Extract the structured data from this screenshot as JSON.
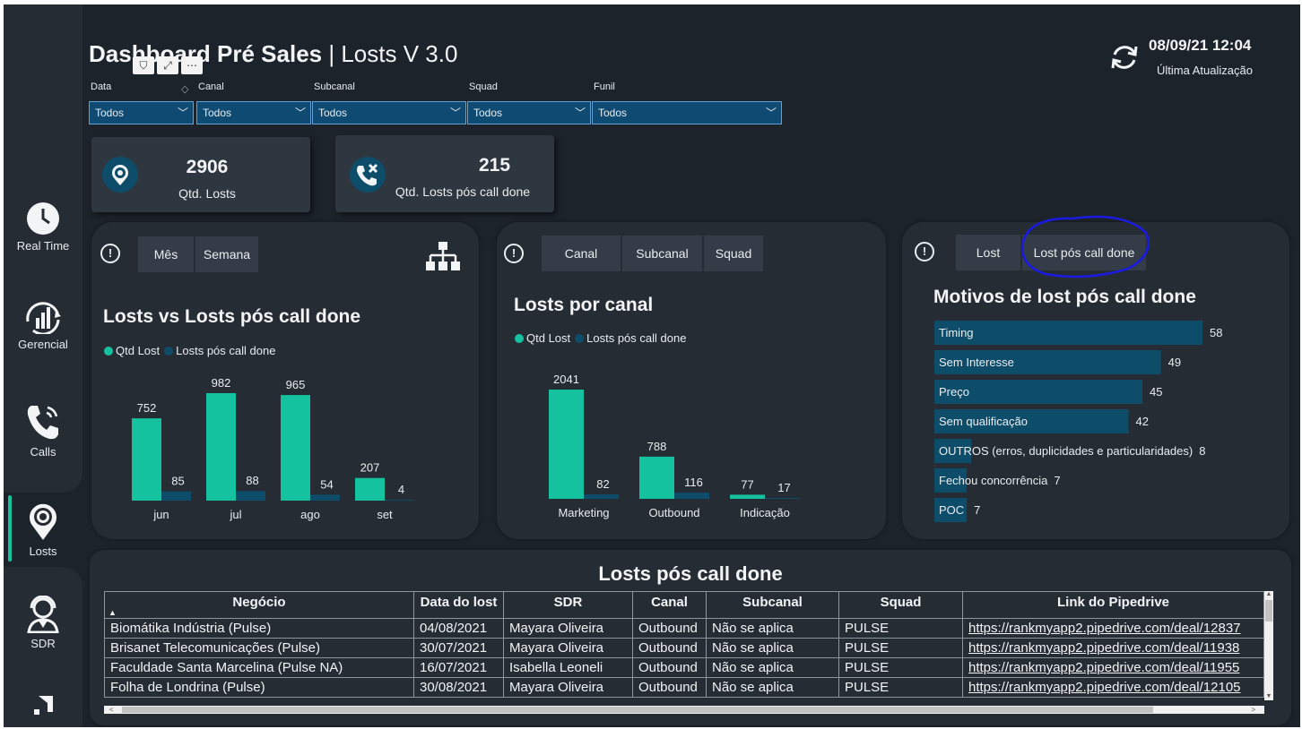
{
  "header": {
    "title_bold": "Dashboard Pré Sales",
    "title_rest": "| Losts V 3.0",
    "datetime": "08/09/21 12:04",
    "last_update_label": "Última Atualização"
  },
  "sidebar": {
    "items": [
      {
        "label": "Real Time",
        "icon": "clock-icon"
      },
      {
        "label": "Gerencial",
        "icon": "chart-gauge-icon"
      },
      {
        "label": "Calls",
        "icon": "phone-icon"
      },
      {
        "label": "Losts",
        "icon": "target-pin-icon",
        "selected": true
      },
      {
        "label": "SDR",
        "icon": "person-headset-icon"
      }
    ]
  },
  "filters": [
    {
      "label": "Data",
      "value": "Todos"
    },
    {
      "label": "Canal",
      "value": "Todos"
    },
    {
      "label": "Subcanal",
      "value": "Todos"
    },
    {
      "label": "Squad",
      "value": "Todos"
    },
    {
      "label": "Funil",
      "value": "Todos"
    }
  ],
  "kpis": [
    {
      "value": "2906",
      "caption": "Qtd. Losts"
    },
    {
      "value": "215",
      "caption": "Qtd. Losts pós call done"
    }
  ],
  "colors": {
    "qtd_lost": "#14c2a0",
    "lost_pos_call": "#0e4d6a",
    "bar_blue": "#0e4d6a",
    "accent": "#14c2a0",
    "annotation": "#1a1ae0"
  },
  "panel1": {
    "toggles": [
      "Mês",
      "Semana"
    ],
    "title": "Losts vs Losts pós call done",
    "legend": [
      "Qtd Lost",
      "Losts pós call done"
    ]
  },
  "panel2": {
    "toggles": [
      "Canal",
      "Subcanal",
      "Squad"
    ],
    "title": "Losts por canal",
    "legend": [
      "Qtd Lost",
      "Losts pós call done"
    ]
  },
  "panel3": {
    "toggles": [
      "Lost",
      "Lost pós call done"
    ],
    "title": "Motivos de lost pós call done"
  },
  "chart_data": [
    {
      "type": "bar",
      "title": "Losts vs Losts pós call done",
      "categories": [
        "jun",
        "jul",
        "ago",
        "set"
      ],
      "series": [
        {
          "name": "Qtd Lost",
          "values": [
            752,
            982,
            965,
            207
          ]
        },
        {
          "name": "Losts pós call done",
          "values": [
            85,
            88,
            54,
            4
          ]
        }
      ]
    },
    {
      "type": "bar",
      "title": "Losts por canal",
      "categories": [
        "Marketing",
        "Outbound",
        "Indicação"
      ],
      "series": [
        {
          "name": "Qtd Lost",
          "values": [
            2041,
            788,
            77
          ]
        },
        {
          "name": "Losts pós call done",
          "values": [
            82,
            116,
            17
          ]
        }
      ]
    },
    {
      "type": "bar",
      "orientation": "horizontal",
      "title": "Motivos de lost pós call done",
      "categories": [
        "Timing",
        "Sem Interesse",
        "Preço",
        "Sem qualificação",
        "OUTROS (erros, duplicidades e particularidades)",
        "Fechou concorrência",
        "POC"
      ],
      "values": [
        58,
        49,
        45,
        42,
        8,
        7,
        7
      ]
    }
  ],
  "table": {
    "title": "Losts pós call done",
    "columns": [
      "Negócio",
      "Data do lost",
      "SDR",
      "Canal",
      "Subcanal",
      "Squad",
      "Link do Pipedrive"
    ],
    "rows": [
      [
        "Biomátika Indústria (Pulse)",
        "04/08/2021",
        "Mayara Oliveira",
        "Outbound",
        "Não se aplica",
        "PULSE",
        "https://rankmyapp2.pipedrive.com/deal/12837"
      ],
      [
        "Brisanet Telecomunicações (Pulse)",
        "30/07/2021",
        "Mayara Oliveira",
        "Outbound",
        "Não se aplica",
        "PULSE",
        "https://rankmyapp2.pipedrive.com/deal/11938"
      ],
      [
        "Faculdade Santa Marcelina (Pulse NA)",
        "16/07/2021",
        "Isabella Leoneli",
        "Outbound",
        "Não se aplica",
        "PULSE",
        "https://rankmyapp2.pipedrive.com/deal/11955"
      ],
      [
        "Folha de Londrina (Pulse)",
        "30/08/2021",
        "Mayara Oliveira",
        "Outbound",
        "Não se aplica",
        "PULSE",
        "https://rankmyapp2.pipedrive.com/deal/12105"
      ]
    ]
  }
}
